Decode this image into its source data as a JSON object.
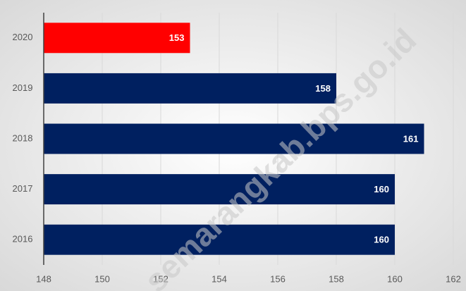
{
  "chart_data": {
    "type": "barh",
    "categories": [
      "2020",
      "2019",
      "2018",
      "2017",
      "2016"
    ],
    "values": [
      153,
      158,
      161,
      160,
      160
    ],
    "colors": [
      "#ff0000",
      "#002060",
      "#002060",
      "#002060",
      "#002060"
    ],
    "xlim": [
      148,
      162
    ],
    "xticks": [
      148,
      150,
      152,
      154,
      156,
      158,
      160,
      162
    ],
    "grid": true,
    "watermark": "semarangkab.bps.go.id"
  }
}
